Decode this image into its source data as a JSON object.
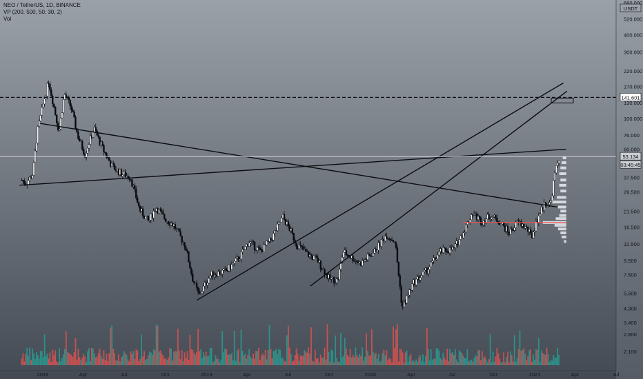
{
  "header": {
    "symbol_line": "NEO / TetherUS, 1D, BINANCE",
    "indicator_vp": "VP (200, 500, 50, 30, 2)",
    "indicator_vol": "Vol"
  },
  "colors": {
    "candle_up": "#ffffff",
    "candle_down": "#0b0d10",
    "trendline": "#0b0d10",
    "volume_up": "#26a69a",
    "volume_down": "#ef5350",
    "poc_line": "#ef5350",
    "profile": "#e8ebef"
  },
  "chart_data": {
    "type": "candlestick",
    "xlabel": "",
    "ylabel": "",
    "y_scale": "log",
    "ylim": [
      1.8,
      680
    ],
    "x_tick_labels": [
      "2018",
      "Apr",
      "Jul",
      "Oct",
      "2019",
      "Apr",
      "Jul",
      "Oct",
      "2020",
      "Apr",
      "Jul",
      "Oct",
      "2021",
      "Apr",
      "Jul"
    ],
    "y_tick_labels": [
      "2.100",
      "2.800",
      "3.400",
      "4.300",
      "5.500",
      "7.500",
      "9.500",
      "12.500",
      "16.500",
      "21.500",
      "29.500",
      "37.500",
      "48.000",
      "60.000",
      "76.000",
      "100.000",
      "130.000",
      "170.000",
      "220.000",
      "300.000",
      "400.000",
      "520.000",
      "680.000"
    ],
    "currency_label": "USDT",
    "current_price_label": "53.134",
    "current_price": 53.134,
    "countdown_label": "03:45:45",
    "horizontal_level_label": "141.601",
    "horizontal_level": 141.601,
    "price_path": [
      {
        "date": "2017-11-15",
        "price": 36
      },
      {
        "date": "2017-11-25",
        "price": 34
      },
      {
        "date": "2017-12-10",
        "price": 40
      },
      {
        "date": "2017-12-20",
        "price": 80
      },
      {
        "date": "2018-01-05",
        "price": 140
      },
      {
        "date": "2018-01-14",
        "price": 185
      },
      {
        "date": "2018-01-24",
        "price": 130
      },
      {
        "date": "2018-02-06",
        "price": 80
      },
      {
        "date": "2018-02-18",
        "price": 150
      },
      {
        "date": "2018-03-05",
        "price": 120
      },
      {
        "date": "2018-03-20",
        "price": 75
      },
      {
        "date": "2018-04-05",
        "price": 55
      },
      {
        "date": "2018-04-25",
        "price": 85
      },
      {
        "date": "2018-05-15",
        "price": 60
      },
      {
        "date": "2018-06-05",
        "price": 45
      },
      {
        "date": "2018-06-25",
        "price": 40
      },
      {
        "date": "2018-07-15",
        "price": 38
      },
      {
        "date": "2018-08-05",
        "price": 22
      },
      {
        "date": "2018-08-25",
        "price": 18
      },
      {
        "date": "2018-09-10",
        "price": 23
      },
      {
        "date": "2018-09-30",
        "price": 19
      },
      {
        "date": "2018-10-20",
        "price": 17
      },
      {
        "date": "2018-11-15",
        "price": 12
      },
      {
        "date": "2018-12-01",
        "price": 7
      },
      {
        "date": "2018-12-15",
        "price": 5.3
      },
      {
        "date": "2019-01-10",
        "price": 7.5
      },
      {
        "date": "2019-02-15",
        "price": 8
      },
      {
        "date": "2019-03-15",
        "price": 10
      },
      {
        "date": "2019-04-05",
        "price": 13
      },
      {
        "date": "2019-05-01",
        "price": 11
      },
      {
        "date": "2019-05-25",
        "price": 13.5
      },
      {
        "date": "2019-06-20",
        "price": 19.5
      },
      {
        "date": "2019-07-05",
        "price": 16
      },
      {
        "date": "2019-07-20",
        "price": 12.5
      },
      {
        "date": "2019-08-15",
        "price": 10.5
      },
      {
        "date": "2019-09-05",
        "price": 9.5
      },
      {
        "date": "2019-10-01",
        "price": 7
      },
      {
        "date": "2019-10-20",
        "price": 6.8
      },
      {
        "date": "2019-11-01",
        "price": 11
      },
      {
        "date": "2019-11-20",
        "price": 10
      },
      {
        "date": "2019-12-10",
        "price": 9
      },
      {
        "date": "2020-01-10",
        "price": 11
      },
      {
        "date": "2020-02-05",
        "price": 14.5
      },
      {
        "date": "2020-02-25",
        "price": 13
      },
      {
        "date": "2020-03-12",
        "price": 4.3
      },
      {
        "date": "2020-04-05",
        "price": 6.5
      },
      {
        "date": "2020-05-05",
        "price": 8
      },
      {
        "date": "2020-06-05",
        "price": 11
      },
      {
        "date": "2020-07-05",
        "price": 11.5
      },
      {
        "date": "2020-07-25",
        "price": 15
      },
      {
        "date": "2020-08-15",
        "price": 21
      },
      {
        "date": "2020-09-05",
        "price": 18
      },
      {
        "date": "2020-09-25",
        "price": 20
      },
      {
        "date": "2020-10-15",
        "price": 18
      },
      {
        "date": "2020-11-05",
        "price": 15
      },
      {
        "date": "2020-11-25",
        "price": 18
      },
      {
        "date": "2020-12-15",
        "price": 16
      },
      {
        "date": "2020-12-25",
        "price": 14
      },
      {
        "date": "2021-01-10",
        "price": 20
      },
      {
        "date": "2021-01-25",
        "price": 25
      },
      {
        "date": "2021-02-05",
        "price": 24
      },
      {
        "date": "2021-02-15",
        "price": 40
      },
      {
        "date": "2021-02-25",
        "price": 53
      }
    ],
    "trendlines": [
      {
        "from": {
          "date": "2017-11-10",
          "price": 33
        },
        "to": {
          "date": "2021-03-12",
          "price": 60
        }
      },
      {
        "from": {
          "date": "2017-12-26",
          "price": 92
        },
        "to": {
          "date": "2021-02-20",
          "price": 23
        }
      },
      {
        "from": {
          "date": "2018-12-10",
          "price": 4.9
        },
        "to": {
          "date": "2021-03-06",
          "price": 180
        }
      },
      {
        "from": {
          "date": "2019-08-20",
          "price": 6.2
        },
        "to": {
          "date": "2021-03-14",
          "price": 157
        }
      }
    ],
    "poc": {
      "from": "2020-07-25",
      "to": "2021-02-25",
      "price": 17.8
    },
    "volume_profile": [
      {
        "price": 13,
        "width": 0.02
      },
      {
        "price": 14,
        "width": 0.04
      },
      {
        "price": 15,
        "width": 0.05
      },
      {
        "price": 16,
        "width": 0.07
      },
      {
        "price": 17,
        "width": 0.1
      },
      {
        "price": 17.8,
        "width": 0.2
      },
      {
        "price": 19,
        "width": 0.09
      },
      {
        "price": 20,
        "width": 0.06
      },
      {
        "price": 21.5,
        "width": 0.05
      },
      {
        "price": 23,
        "width": 0.07
      },
      {
        "price": 25,
        "width": 0.12
      },
      {
        "price": 27,
        "width": 0.08
      },
      {
        "price": 30,
        "width": 0.05
      },
      {
        "price": 33,
        "width": 0.06
      },
      {
        "price": 36,
        "width": 0.05
      },
      {
        "price": 40,
        "width": 0.06
      },
      {
        "price": 44,
        "width": 0.05
      },
      {
        "price": 48,
        "width": 0.04
      },
      {
        "price": 52,
        "width": 0.03
      }
    ]
  }
}
